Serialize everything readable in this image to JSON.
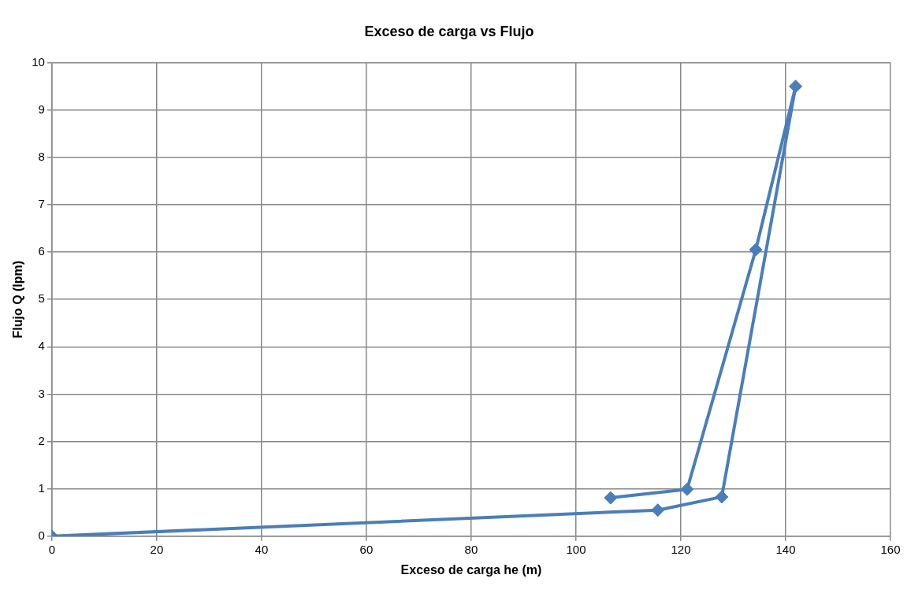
{
  "chart_data": {
    "type": "line",
    "title": "Exceso de carga vs Flujo",
    "xlabel": "Exceso de carga he (m)",
    "ylabel": "Flujo Q (lpm)",
    "x": [
      0,
      115.6,
      127.8,
      141.9,
      134.3,
      121.2,
      106.6
    ],
    "series": [
      {
        "color": "#4a7ebb",
        "values": [
          0,
          0.55,
          0.83,
          9.5,
          6.05,
          0.99,
          0.81
        ]
      }
    ],
    "xlim": [
      0,
      160
    ],
    "xticks": [
      0,
      20,
      40,
      60,
      80,
      100,
      120,
      140,
      160
    ],
    "ylim": [
      0,
      10
    ],
    "yticks": [
      0,
      1,
      2,
      3,
      4,
      5,
      6,
      7,
      8,
      9,
      10
    ],
    "grid": true,
    "legend": false,
    "marker": "diamond",
    "line_style": "solid"
  }
}
